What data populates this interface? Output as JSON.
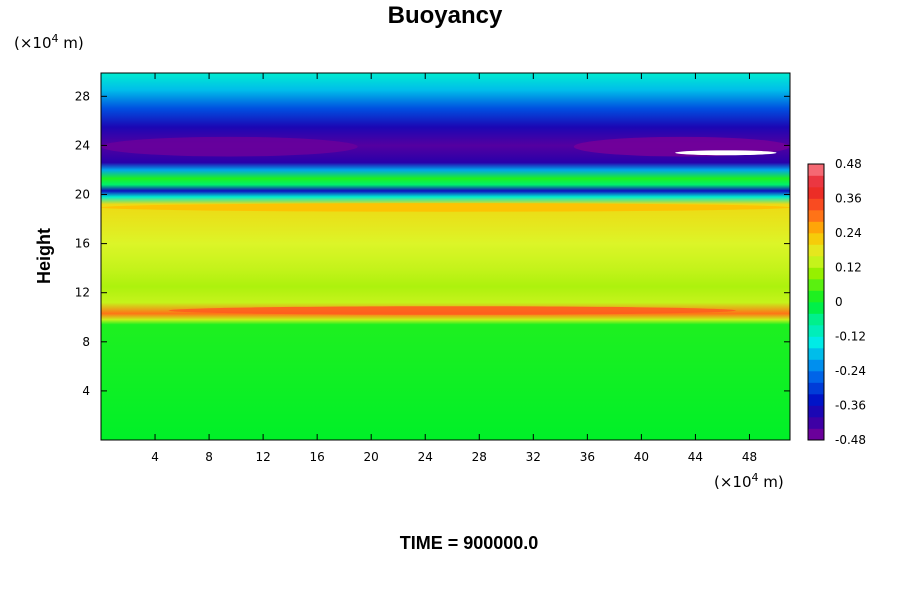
{
  "chart_data": {
    "type": "heatmap",
    "title": "Buoyancy",
    "ylabel": "Height",
    "x_unit": {
      "prefix": "(×10",
      "exp": "4",
      "suffix": " m)"
    },
    "y_unit": {
      "prefix": "(×10",
      "exp": "4",
      "suffix": " m)"
    },
    "xlim": [
      0,
      51
    ],
    "ylim": [
      0,
      29.9
    ],
    "xticks": [
      4,
      8,
      12,
      16,
      20,
      24,
      28,
      32,
      36,
      40,
      44,
      48
    ],
    "yticks": [
      4,
      8,
      12,
      16,
      20,
      24,
      28
    ],
    "colorbar": {
      "min": -0.48,
      "max": 0.48,
      "step": 0.04,
      "labels": [
        "0.48",
        "0.36",
        "0.24",
        "0.12",
        "0",
        "-0.12",
        "-0.24",
        "-0.36",
        "-0.48"
      ],
      "label_values": [
        0.48,
        0.36,
        0.24,
        0.12,
        0,
        -0.12,
        -0.24,
        -0.36,
        -0.48
      ]
    },
    "height_profile": [
      {
        "y": 0,
        "value": 0.0
      },
      {
        "y": 9.4,
        "value": 0.02
      },
      {
        "y": 9.8,
        "value": 0.14
      },
      {
        "y": 10.3,
        "value": 0.3
      },
      {
        "y": 11.2,
        "value": 0.14
      },
      {
        "y": 12.5,
        "value": 0.12
      },
      {
        "y": 14.0,
        "value": 0.14
      },
      {
        "y": 16.0,
        "value": 0.16
      },
      {
        "y": 17.5,
        "value": 0.18
      },
      {
        "y": 19.2,
        "value": 0.2
      },
      {
        "y": 19.8,
        "value": -0.12
      },
      {
        "y": 20.3,
        "value": -0.36
      },
      {
        "y": 20.8,
        "value": -0.04
      },
      {
        "y": 21.3,
        "value": 0.02
      },
      {
        "y": 22.0,
        "value": -0.2
      },
      {
        "y": 22.6,
        "value": -0.4
      },
      {
        "y": 24.0,
        "value": -0.44
      },
      {
        "y": 25.5,
        "value": -0.38
      },
      {
        "y": 27.0,
        "value": -0.28
      },
      {
        "y": 28.5,
        "value": -0.18
      },
      {
        "y": 29.9,
        "value": -0.12
      }
    ],
    "features": [
      {
        "name": "warm layer",
        "x": [
          5,
          47
        ],
        "y": [
          10.2,
          10.9
        ],
        "value": 0.32
      },
      {
        "name": "cold core west",
        "x": [
          0,
          19
        ],
        "y": [
          23.1,
          24.7
        ],
        "value": -0.46
      },
      {
        "name": "cold core east",
        "x": [
          35,
          51
        ],
        "y": [
          23.1,
          24.7
        ],
        "value": -0.47
      },
      {
        "name": "missing data",
        "x": [
          42.5,
          50
        ],
        "y": [
          23.2,
          23.6
        ],
        "value": null
      },
      {
        "name": "warm band upper",
        "x": [
          0,
          51
        ],
        "y": [
          18.6,
          19.3
        ],
        "value": 0.24
      }
    ]
  },
  "footer": {
    "text": "TIME = 900000.0"
  }
}
